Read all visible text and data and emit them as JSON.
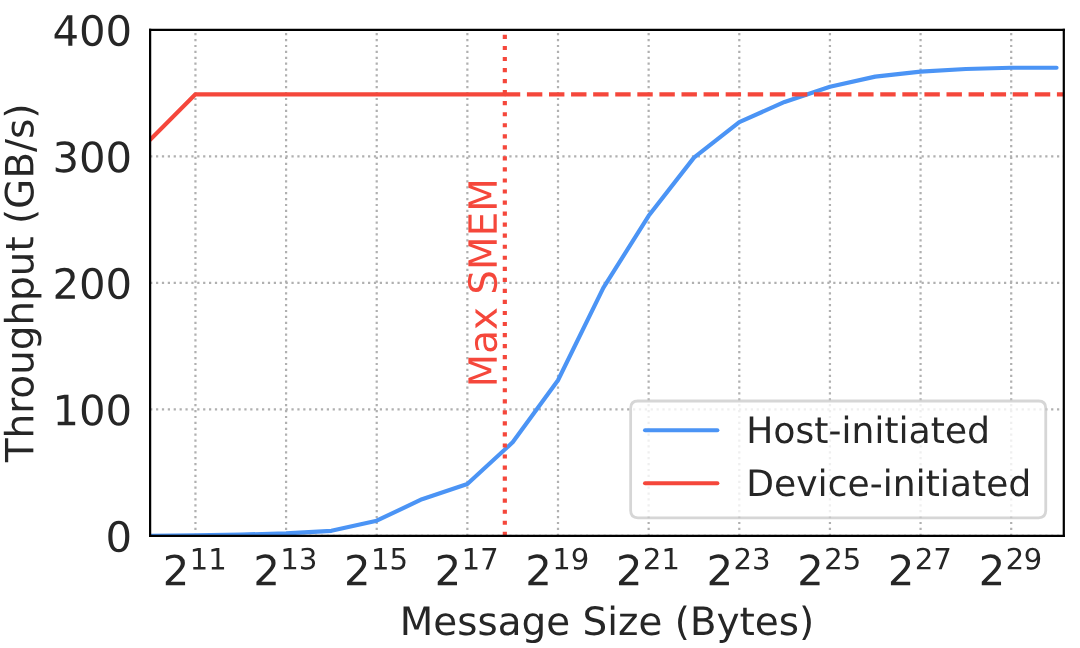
{
  "chart_data": {
    "type": "line",
    "xlabel": "Message Size (Bytes)",
    "ylabel": "Throughput (GB/s)",
    "log": "x",
    "xlim": [
      1024,
      1200000000
    ],
    "ylim": [
      0,
      400
    ],
    "yticks": [
      0,
      100,
      200,
      300,
      400
    ],
    "xticks": [
      {
        "value": 2048,
        "label": "2$^{11}$"
      },
      {
        "value": 8192,
        "label": "2$^{13}$"
      },
      {
        "value": 32768,
        "label": "2$^{15}$"
      },
      {
        "value": 131072,
        "label": "2$^{17}$"
      },
      {
        "value": 524288,
        "label": "2$^{19}$"
      },
      {
        "value": 2097152,
        "label": "2$^{21}$"
      },
      {
        "value": 8388608,
        "label": "2$^{23}$"
      },
      {
        "value": 33554432,
        "label": "2$^{25}$"
      },
      {
        "value": 134217728,
        "label": "2$^{27}$"
      },
      {
        "value": 536870912,
        "label": "2$^{29}$"
      }
    ],
    "grid": true,
    "legend": "bottom right",
    "marker": "none",
    "series": [
      {
        "name": "Host-initiated",
        "color": "#4b94f5",
        "line_style": "solid",
        "x": [
          1024,
          2048,
          4096,
          8192,
          16384,
          32768,
          65536,
          131072,
          262144,
          524288,
          1048576,
          2097152,
          4194304,
          8388608,
          16777216,
          33554432,
          67108864,
          134217728,
          268435456,
          536870912,
          1073741824
        ],
        "values": [
          0,
          0.5,
          1,
          2,
          4,
          12,
          29,
          41,
          74,
          123,
          196,
          253,
          299,
          327,
          343,
          355,
          363,
          367,
          369,
          370,
          370
        ]
      },
      {
        "name": "Device-initiated",
        "color": "#f5473b",
        "line_style": "solid",
        "x": [
          1024,
          2048,
          4096,
          8192,
          16384,
          32768,
          65536,
          131072,
          232448
        ],
        "values": [
          313,
          349,
          349,
          349,
          349,
          349,
          349,
          349,
          349
        ]
      },
      {
        "color": "#f5473b",
        "line_style": "dashed",
        "x": [
          232448,
          1200000000
        ],
        "values": [
          349,
          349
        ]
      }
    ],
    "ref_lines": [
      {
        "axis": "x",
        "value": 232448,
        "label": "Max SMEM",
        "color": "#f5473b",
        "line_style": "dotted"
      }
    ]
  }
}
